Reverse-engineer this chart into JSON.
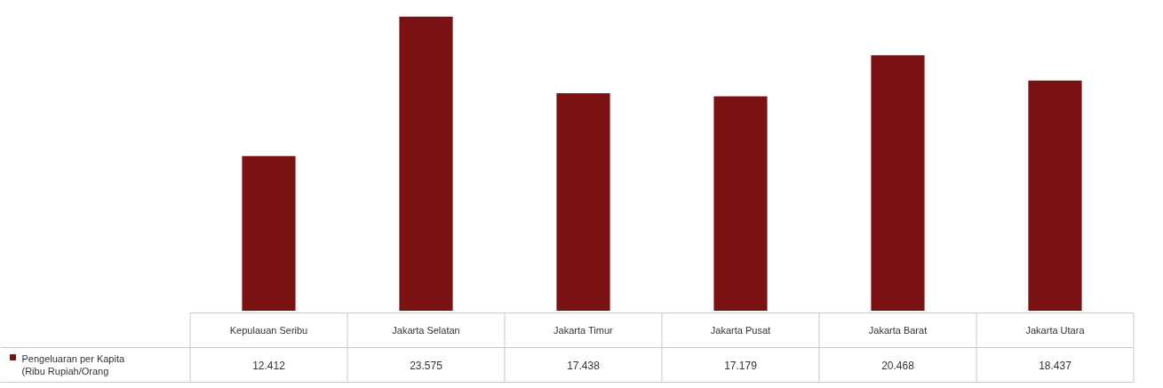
{
  "chart_data": {
    "type": "bar",
    "categories": [
      "Kepulauan Seribu",
      "Jakarta Selatan",
      "Jakarta Timur",
      "Jakarta Pusat",
      "Jakarta Barat",
      "Jakarta Utara"
    ],
    "series": [
      {
        "name": "Pengeluaran per Kapita (Ribu Rupiah/Orang",
        "color": "#7a1214",
        "values": [
          12412,
          23575,
          17438,
          17179,
          20468,
          18437
        ],
        "value_labels": [
          "12.412",
          "23.575",
          "17.438",
          "17.179",
          "20.468",
          "18.437"
        ]
      }
    ],
    "legend": "bottom left",
    "grid": false
  }
}
